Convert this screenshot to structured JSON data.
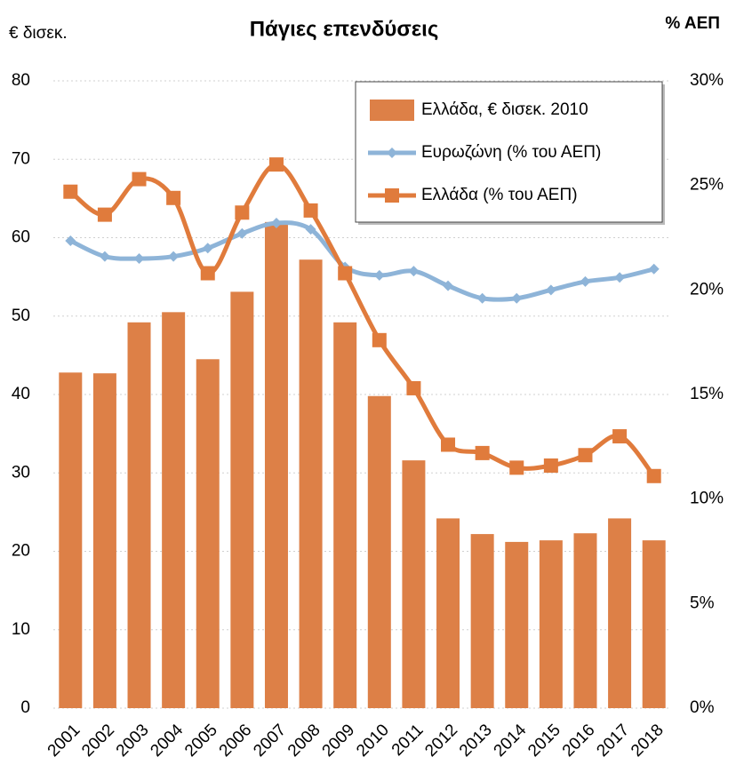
{
  "chart_data": {
    "type": "bar",
    "title": "Πάγιες επενδύσεις",
    "ylabel": "€ δισεκ.",
    "y2label": "% ΑΕΠ",
    "categories": [
      "2001",
      "2002",
      "2003",
      "2004",
      "2005",
      "2006",
      "2007",
      "2008",
      "2009",
      "2010",
      "2011",
      "2012",
      "2013",
      "2014",
      "2015",
      "2016",
      "2017",
      "2018"
    ],
    "series": [
      {
        "name": "Ελλάδα, € δισεκ. 2010",
        "type": "bar",
        "color": "#dd8047",
        "values": [
          42.8,
          42.7,
          49.2,
          50.5,
          44.5,
          53.1,
          62.0,
          57.2,
          49.2,
          39.8,
          31.6,
          24.2,
          22.2,
          21.2,
          21.4,
          22.3,
          24.2,
          21.4
        ]
      },
      {
        "name": "Ευρωζώνη (% του ΑΕΠ)",
        "type": "line",
        "axis": "y2",
        "marker": "diamond",
        "color": "#8eb4d8",
        "values": [
          22.35,
          21.6,
          21.5,
          21.6,
          22.0,
          22.7,
          23.2,
          22.9,
          21.1,
          20.7,
          20.9,
          20.2,
          19.6,
          19.6,
          20.0,
          20.4,
          20.6,
          21.0
        ]
      },
      {
        "name": "Ελλάδα (% του ΑΕΠ)",
        "type": "line",
        "axis": "y2",
        "marker": "square",
        "color": "#e07b3c",
        "values": [
          24.7,
          23.6,
          25.3,
          24.4,
          20.8,
          23.7,
          26.0,
          23.8,
          20.8,
          17.6,
          15.3,
          12.6,
          12.2,
          11.5,
          11.6,
          12.1,
          13.0,
          11.1
        ]
      }
    ],
    "ylim": [
      0,
      80
    ],
    "yticks": [
      0,
      10,
      20,
      30,
      40,
      50,
      60,
      70,
      80
    ],
    "y2lim": [
      0,
      30
    ],
    "y2ticks": [
      {
        "value": 0,
        "label": "0%"
      },
      {
        "value": 5,
        "label": "5%"
      },
      {
        "value": 10,
        "label": "10%"
      },
      {
        "value": 15,
        "label": "15%"
      },
      {
        "value": 20,
        "label": "20%"
      },
      {
        "value": 25,
        "label": "25%"
      },
      {
        "value": 30,
        "label": "30%"
      }
    ],
    "grid": true,
    "legend": "upper right"
  }
}
